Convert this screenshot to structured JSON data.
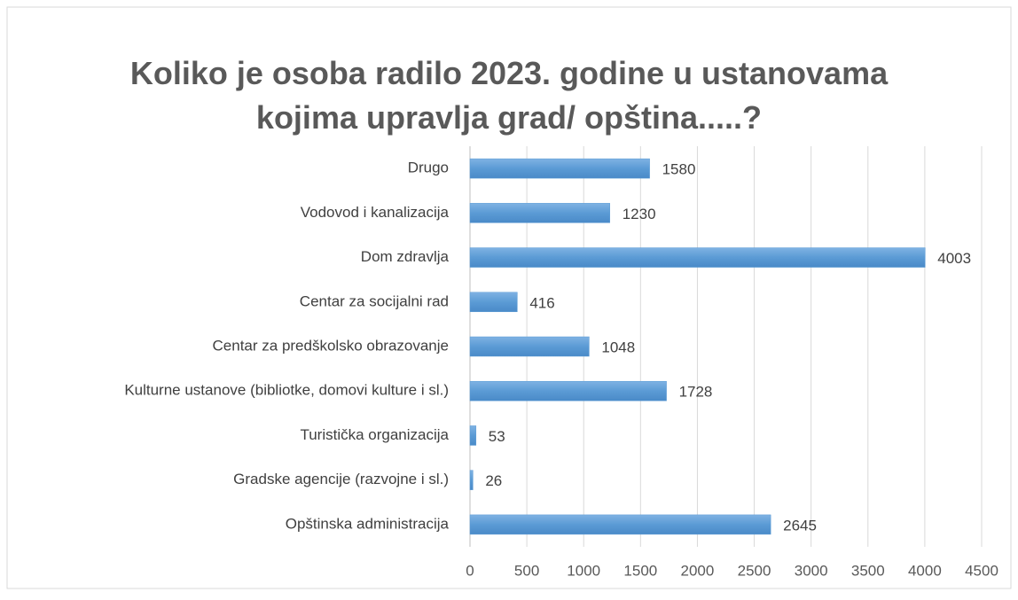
{
  "chart_data": {
    "type": "bar",
    "orientation": "horizontal",
    "title": "Koliko je osoba radilo 2023. godine u ustanovama kojima upravlja grad/ opština.....?",
    "categories": [
      "Drugo",
      "Vodovod i kanalizacija",
      "Dom zdravlja",
      "Centar za socijalni rad",
      "Centar za predškolsko obrazovanje",
      "Kulturne ustanove (bibliotke, domovi kulture i sl.)",
      "Turistička organizacija",
      "Gradske agencije (razvojne i sl.)",
      "Opštinska administracija"
    ],
    "values": [
      1580,
      1230,
      4003,
      416,
      1048,
      1728,
      53,
      26,
      2645
    ],
    "color": "#5b9bd5",
    "xlim": [
      0,
      4500
    ],
    "xticks": [
      0,
      500,
      1000,
      1500,
      2000,
      2500,
      3000,
      3500,
      4000,
      4500
    ],
    "grid": true
  }
}
